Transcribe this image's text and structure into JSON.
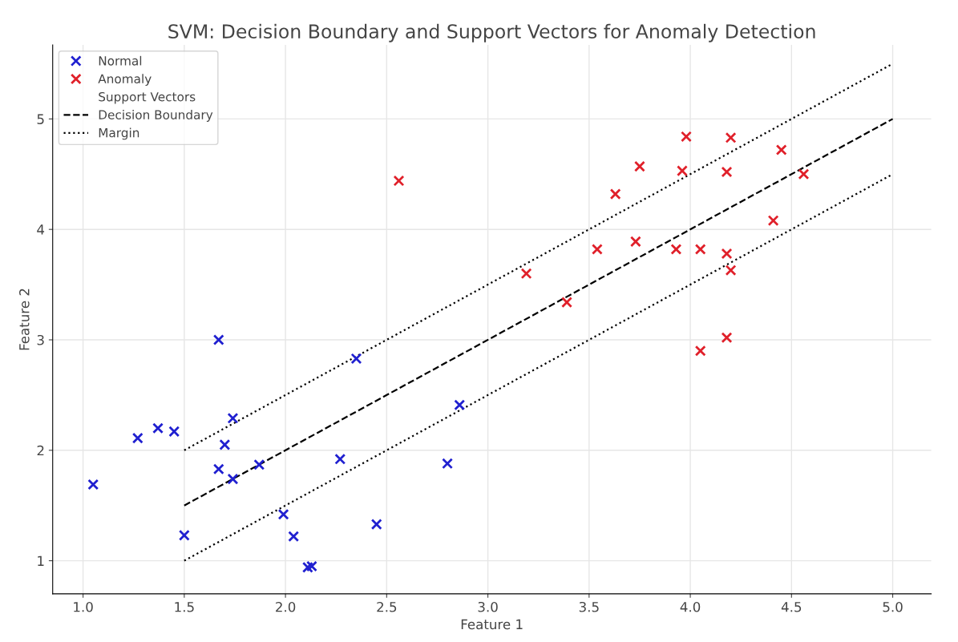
{
  "chart_data": {
    "type": "scatter",
    "title": "SVM: Decision Boundary and Support Vectors for Anomaly Detection",
    "xlabel": "Feature 1",
    "ylabel": "Feature 2",
    "xlim": [
      0.85,
      5.19
    ],
    "ylim": [
      0.7,
      5.67
    ],
    "xticks": [
      {
        "value": 1.0,
        "label": "1.0"
      },
      {
        "value": 1.5,
        "label": "1.5"
      },
      {
        "value": 2.0,
        "label": "2.0"
      },
      {
        "value": 2.5,
        "label": "2.5"
      },
      {
        "value": 3.0,
        "label": "3.0"
      },
      {
        "value": 3.5,
        "label": "3.5"
      },
      {
        "value": 4.0,
        "label": "4.0"
      },
      {
        "value": 4.5,
        "label": "4.5"
      },
      {
        "value": 5.0,
        "label": "5.0"
      }
    ],
    "yticks": [
      1,
      2,
      3,
      4,
      5
    ],
    "grid": true,
    "legend": "top left",
    "marker": "cross",
    "series": [
      {
        "name": "Normal",
        "color": "#2020d0",
        "x": [
          1.05,
          1.27,
          1.37,
          1.45,
          1.67,
          1.74,
          1.7,
          1.67,
          1.74,
          1.87,
          1.5,
          2.35,
          1.99,
          2.04,
          2.11,
          2.13,
          2.27,
          2.45,
          2.8,
          2.86
        ],
        "values": [
          1.69,
          2.11,
          2.2,
          2.17,
          3.0,
          2.29,
          2.05,
          1.83,
          1.74,
          1.87,
          1.23,
          2.83,
          1.42,
          1.22,
          0.94,
          0.95,
          1.92,
          1.33,
          1.88,
          2.41
        ]
      },
      {
        "name": "Anomaly",
        "color": "#e0202a",
        "x": [
          2.56,
          3.19,
          3.39,
          3.54,
          3.63,
          3.73,
          3.75,
          3.93,
          3.96,
          3.98,
          4.05,
          4.05,
          4.18,
          4.18,
          4.2,
          4.2,
          4.18,
          4.41,
          4.45,
          4.56
        ],
        "values": [
          4.44,
          3.6,
          3.34,
          3.82,
          4.32,
          3.89,
          4.57,
          3.82,
          4.53,
          4.84,
          3.82,
          2.9,
          3.78,
          4.52,
          4.83,
          3.63,
          3.02,
          4.08,
          4.72,
          4.5
        ]
      },
      {
        "name": "Support Vectors",
        "marker": "none"
      },
      {
        "name": "Decision Boundary",
        "type": "line",
        "color": "#000000",
        "line_style": "dashed",
        "marker": "none",
        "x": [
          1.5,
          5.0
        ],
        "values": [
          1.5,
          5.0
        ]
      },
      {
        "name": "Margin",
        "type": "line",
        "color": "#000000",
        "line_style": "dotted",
        "marker": "none",
        "x": [
          1.5,
          5.0
        ],
        "values": [
          2.0,
          5.5
        ]
      },
      {
        "type": "line",
        "color": "#000000",
        "line_style": "dotted",
        "marker": "none",
        "x": [
          1.5,
          5.0
        ],
        "values": [
          1.0,
          4.5
        ]
      }
    ]
  }
}
